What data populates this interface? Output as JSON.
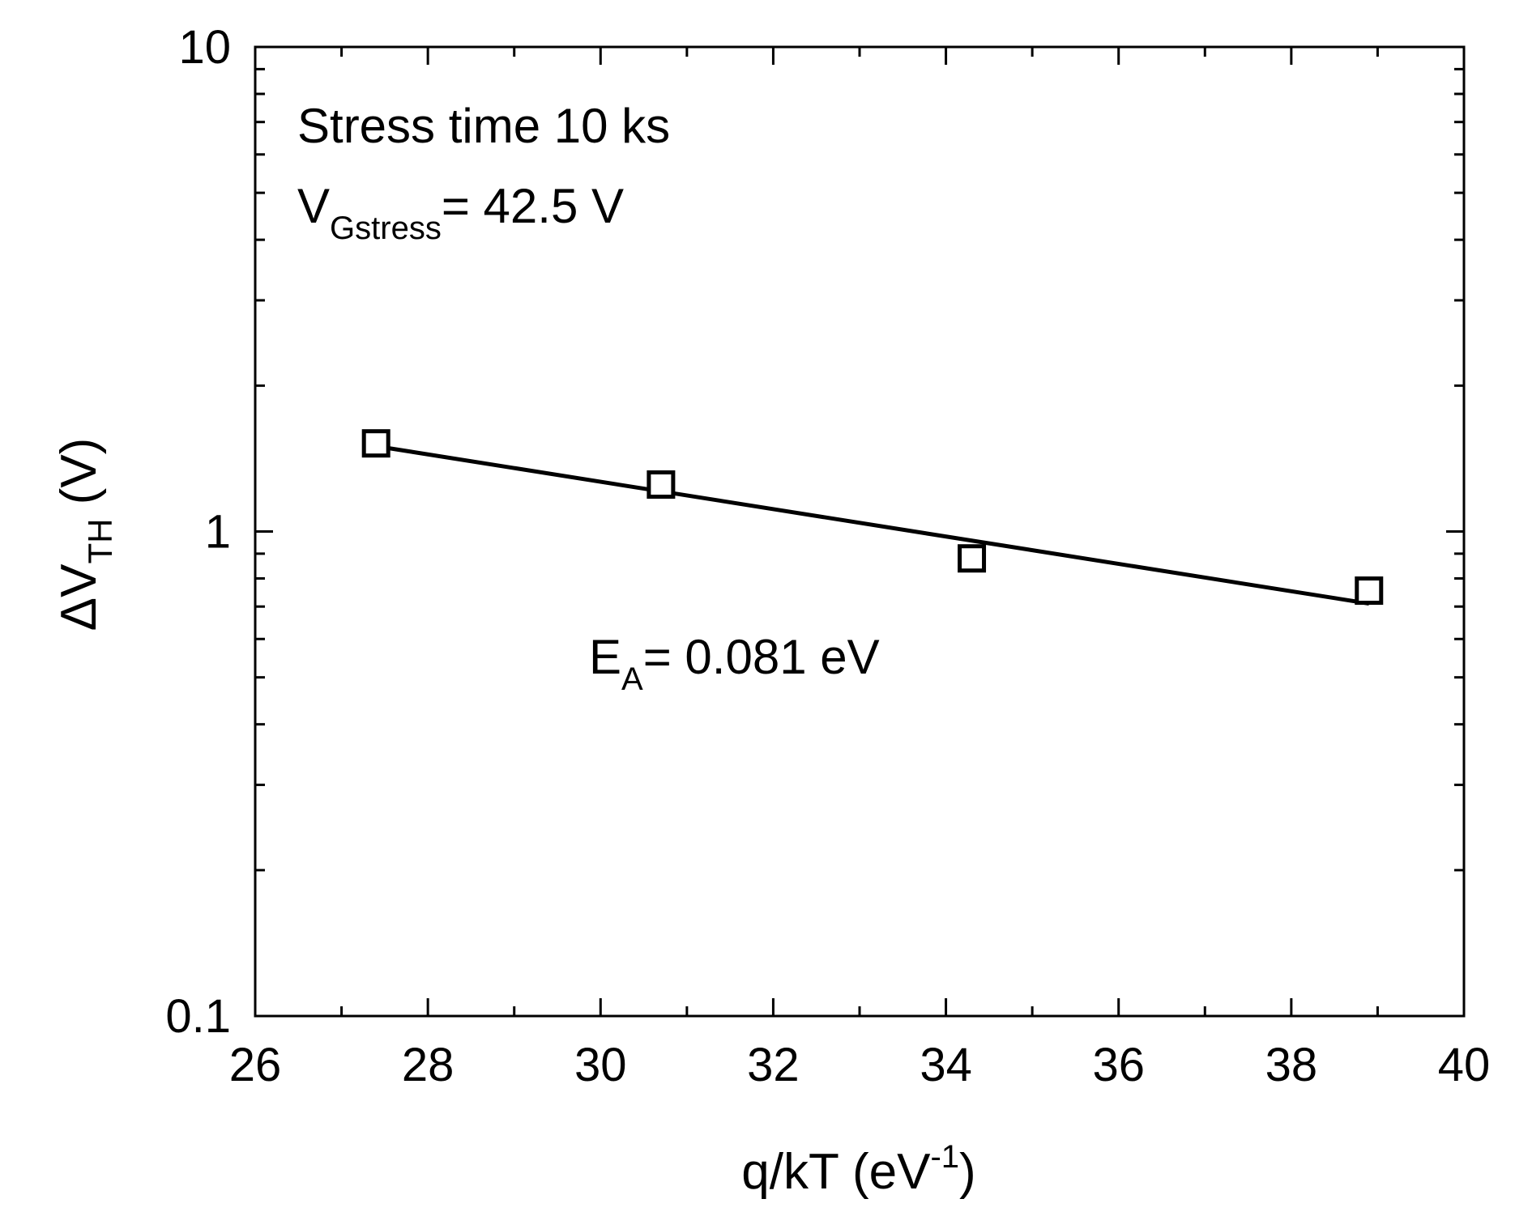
{
  "chart_data": {
    "type": "scatter",
    "title": "",
    "xlabel": {
      "main": "q/kT (eV",
      "sup": "-1",
      "end": ")"
    },
    "ylabel": {
      "delta": "Δ",
      "main": "V",
      "sub": "TH",
      "end": " (V)"
    },
    "xlim": [
      26,
      40
    ],
    "ylim": [
      0.1,
      10
    ],
    "yscale": "log",
    "x_ticks": [
      26,
      28,
      30,
      32,
      34,
      36,
      38,
      40
    ],
    "x_tick_labels": [
      "26",
      "28",
      "30",
      "32",
      "34",
      "36",
      "38",
      "40"
    ],
    "y_ticks": [
      0.1,
      1,
      10
    ],
    "y_tick_labels": [
      "0.1",
      "1",
      "10"
    ],
    "grid": false,
    "series": [
      {
        "name": "ΔVTH",
        "marker": "open-square",
        "x": [
          27.4,
          30.7,
          34.3,
          38.9
        ],
        "y": [
          1.52,
          1.25,
          0.88,
          0.755
        ]
      },
      {
        "name": "fit",
        "style": "line",
        "x": [
          27.4,
          38.9
        ],
        "y": [
          1.5,
          0.71
        ]
      }
    ],
    "annotations": {
      "stress_time": "Stress time 10 ks",
      "vg_main": "V",
      "vg_sub": "Gstress",
      "vg_value": "= 42.5 V",
      "ea_main": "E",
      "ea_sub": "A",
      "ea_value": "= 0.081 eV"
    },
    "colors": {
      "line": "#000000",
      "marker": "#000000",
      "background": "#ffffff"
    }
  }
}
